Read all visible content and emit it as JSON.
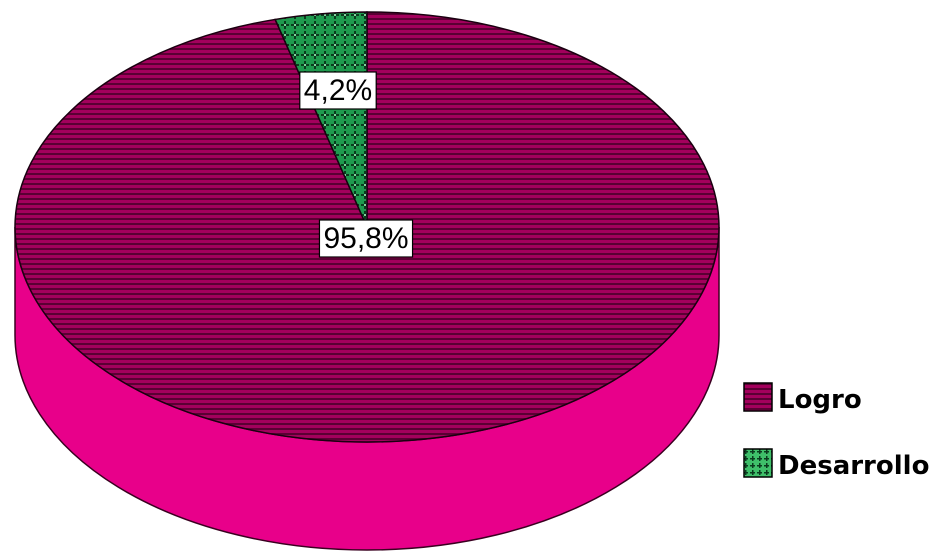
{
  "chart_data": {
    "type": "pie",
    "style": "3d",
    "labels": [
      "Logro",
      "Desarrollo"
    ],
    "values": [
      95.8,
      4.2
    ],
    "data_labels": [
      "95,8%",
      "4,2%"
    ],
    "colors": {
      "Logro": "#a3005c",
      "Desarrollo": "#1f9a4e"
    },
    "legend": {
      "position": "right",
      "entries": [
        "Logro",
        "Desarrollo"
      ]
    },
    "title": ""
  }
}
